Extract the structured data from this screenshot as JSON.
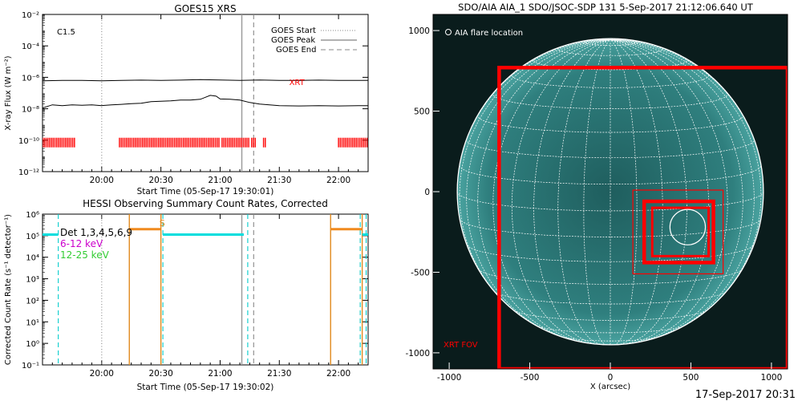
{
  "stamp": "17-Sep-2017 20:31",
  "chart_data": [
    {
      "type": "line",
      "title": "GOES15 XRS",
      "xlabel": "Start Time (05-Sep-17 19:30:01)",
      "ylabel": "X-ray Flux (W m⁻²)",
      "x_unit": "minutes after 19:30",
      "xlim": [
        0,
        165
      ],
      "ylim_log10": [
        -12,
        -2
      ],
      "yscale": "log",
      "x_ticks": [
        {
          "x": 30,
          "label": "20:00"
        },
        {
          "x": 60,
          "label": "20:30"
        },
        {
          "x": 90,
          "label": "21:00"
        },
        {
          "x": 120,
          "label": "21:30"
        },
        {
          "x": 150,
          "label": "22:00"
        }
      ],
      "y_ticks": [
        {
          "exp": -2,
          "label": "10⁻²"
        },
        {
          "exp": -4,
          "label": "10⁻⁴"
        },
        {
          "exp": -6,
          "label": "10⁻⁶"
        },
        {
          "exp": -8,
          "label": "10⁻⁸"
        },
        {
          "exp": -10,
          "label": "10⁻¹⁰"
        },
        {
          "exp": -12,
          "label": "10⁻¹²"
        }
      ],
      "flare_class": "C1.5",
      "legend": {
        "position": "top-right",
        "entries": [
          {
            "label": "GOES Start",
            "style": "dotted"
          },
          {
            "label": "GOES Peak",
            "style": "solid"
          },
          {
            "label": "GOES End",
            "style": "dashed"
          }
        ]
      },
      "vlines": [
        {
          "x": 30,
          "style": "dotted",
          "color": "#888888"
        },
        {
          "x": 101,
          "style": "solid",
          "color": "#999999"
        },
        {
          "x": 107,
          "style": "dashed",
          "color": "#888888"
        }
      ],
      "series": [
        {
          "name": "",
          "color": "#000000",
          "x": [
            0,
            10,
            20,
            30,
            40,
            50,
            60,
            70,
            80,
            90,
            100,
            110,
            120,
            130,
            140,
            150,
            160,
            165
          ],
          "log10_flux": [
            -6.22,
            -6.2,
            -6.2,
            -6.22,
            -6.2,
            -6.18,
            -6.2,
            -6.18,
            -6.15,
            -6.17,
            -6.2,
            -6.17,
            -6.2,
            -6.2,
            -6.18,
            -6.2,
            -6.2,
            -6.2
          ]
        },
        {
          "name": "",
          "color": "#000000",
          "x": [
            0,
            5,
            10,
            15,
            20,
            25,
            30,
            35,
            40,
            45,
            50,
            55,
            60,
            65,
            70,
            75,
            80,
            85,
            88,
            90,
            95,
            100,
            105,
            110,
            115,
            120,
            130,
            140,
            150,
            160,
            165
          ],
          "log10_flux": [
            -7.95,
            -7.75,
            -7.8,
            -7.75,
            -7.78,
            -7.75,
            -7.8,
            -7.75,
            -7.72,
            -7.68,
            -7.65,
            -7.55,
            -7.52,
            -7.5,
            -7.45,
            -7.45,
            -7.4,
            -7.15,
            -7.2,
            -7.38,
            -7.4,
            -7.45,
            -7.6,
            -7.7,
            -7.75,
            -7.8,
            -7.82,
            -7.8,
            -7.82,
            -7.8,
            -7.8
          ]
        }
      ],
      "annotation": {
        "label": "XRT",
        "x": 125,
        "log10_y": -6.28,
        "color": "#ff0000"
      },
      "xrt_bars": {
        "color": "#ff0000",
        "log10_y": -10.15,
        "intervals": [
          [
            0,
            17
          ],
          [
            39,
            90
          ],
          [
            91,
            105
          ],
          [
            106,
            108
          ],
          [
            112,
            113
          ],
          [
            150,
            165
          ]
        ]
      }
    },
    {
      "type": "line",
      "title": "HESSI Observing Summary Count Rates, Corrected",
      "xlabel": "Start Time (05-Sep-17 19:30:02)",
      "ylabel": "Corrected Count Rate (s⁻¹ detector⁻¹)",
      "x_unit": "minutes after 19:30",
      "xlim": [
        0,
        165
      ],
      "ylim_log10": [
        -1,
        6
      ],
      "yscale": "log",
      "x_ticks": [
        {
          "x": 30,
          "label": "20:00"
        },
        {
          "x": 60,
          "label": "20:30"
        },
        {
          "x": 90,
          "label": "21:00"
        },
        {
          "x": 120,
          "label": "21:30"
        },
        {
          "x": 150,
          "label": "22:00"
        }
      ],
      "y_ticks": [
        {
          "exp": -1,
          "label": "10⁻¹"
        },
        {
          "exp": 0,
          "label": "10⁰"
        },
        {
          "exp": 1,
          "label": "10¹"
        },
        {
          "exp": 2,
          "label": "10²"
        },
        {
          "exp": 3,
          "label": "10³"
        },
        {
          "exp": 4,
          "label": "10⁴"
        },
        {
          "exp": 5,
          "label": "10⁵"
        },
        {
          "exp": 6,
          "label": "10⁶"
        }
      ],
      "legend": {
        "position": "top-left",
        "entries": [
          {
            "label": "Det 1,3,4,5,6,9",
            "color": "#000000"
          },
          {
            "label": "6-12 keV",
            "color": "#cc00cc"
          },
          {
            "label": "12-25 keV",
            "color": "#33cc33"
          }
        ]
      },
      "marker": {
        "label": "S",
        "x": 58,
        "log10_y": 5.45,
        "color": "#e08a1e"
      },
      "vlines": [
        {
          "x": 30,
          "style": "dotted",
          "color": "#888888"
        },
        {
          "x": 101,
          "style": "solid",
          "color": "#999999"
        },
        {
          "x": 107,
          "style": "dashed",
          "color": "#888888"
        },
        {
          "x": 8,
          "style": "dashed",
          "color": "#00cccc"
        },
        {
          "x": 61,
          "style": "dashed",
          "color": "#00cccc"
        },
        {
          "x": 104,
          "style": "dashed",
          "color": "#00cccc"
        },
        {
          "x": 161,
          "style": "dashed",
          "color": "#00cccc"
        },
        {
          "x": 164,
          "style": "dashed",
          "color": "#00cccc"
        },
        {
          "x": 44,
          "style": "solid",
          "color": "#e08a1e"
        },
        {
          "x": 60,
          "style": "solid",
          "color": "#e08a1e"
        },
        {
          "x": 146,
          "style": "solid",
          "color": "#e08a1e"
        },
        {
          "x": 162,
          "style": "solid",
          "color": "#e08a1e"
        }
      ],
      "segments": [
        {
          "x0": 0,
          "x1": 8,
          "log10_y": 5.05,
          "color": "#00dddd"
        },
        {
          "x0": 61,
          "x1": 102,
          "log10_y": 5.05,
          "color": "#00dddd"
        },
        {
          "x0": 44,
          "x1": 60,
          "log10_y": 5.3,
          "color": "#f08a1e"
        },
        {
          "x0": 146,
          "x1": 162,
          "log10_y": 5.3,
          "color": "#f08a1e"
        },
        {
          "x0": 162,
          "x1": 165,
          "log10_y": 5.05,
          "color": "#00dddd"
        }
      ]
    },
    {
      "type": "scatter",
      "title": "SDO/AIA AIA_1 SDO/JSOC-SDP 131  5-Sep-2017 21:12:06.640 UT",
      "xlabel": "X (arcsec)",
      "ylabel": "",
      "xlim": [
        -1100,
        1100
      ],
      "ylim": [
        -1100,
        1100
      ],
      "x_ticks": [
        -1000,
        -500,
        0,
        500,
        1000
      ],
      "y_ticks": [
        1000,
        500,
        0,
        -500,
        -1000
      ],
      "colors": {
        "sun_outer": "#4aa3a0",
        "sun_inner": "#1f5e5e",
        "background": "#0a1c1c",
        "grid": "#ffffff",
        "fov": "#ff0000"
      },
      "solar_radius_arcsec": 950,
      "flare_location": {
        "x": 480,
        "y": -220,
        "r": 110,
        "label": "AIA flare location"
      },
      "boxes": [
        {
          "x0": -690,
          "y0": -1100,
          "x1": 1100,
          "y1": 770,
          "label": "XRT FOV",
          "color": "#ff0000",
          "weight": "thick"
        },
        {
          "x0": 140,
          "y0": -510,
          "x1": 700,
          "y1": 10,
          "color": "#ff0000",
          "weight": "thin"
        },
        {
          "x0": 210,
          "y0": -440,
          "x1": 640,
          "y1": -60,
          "color": "#ff0000",
          "weight": "thick"
        },
        {
          "x0": 260,
          "y0": -400,
          "x1": 610,
          "y1": -100,
          "color": "#ff0000",
          "weight": "medium"
        }
      ]
    }
  ]
}
